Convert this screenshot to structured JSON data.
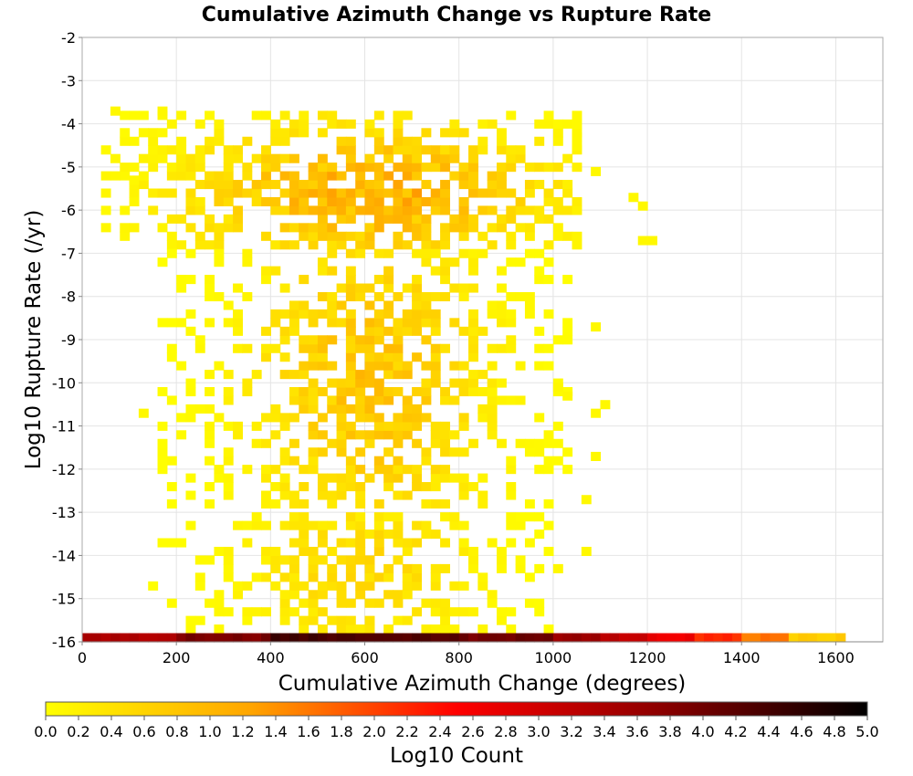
{
  "chart_data": {
    "type": "heatmap",
    "title": "Cumulative Azimuth Change vs Rupture Rate",
    "xlabel": "Cumulative Azimuth Change (degrees)",
    "ylabel": "Log10 Rupture Rate (/yr)",
    "xlim": [
      0,
      1700
    ],
    "ylim": [
      -16,
      -2
    ],
    "x_ticks": [
      0,
      200,
      400,
      600,
      800,
      1000,
      1200,
      1400,
      1600
    ],
    "y_ticks": [
      -2,
      -3,
      -4,
      -5,
      -6,
      -7,
      -8,
      -9,
      -10,
      -11,
      -12,
      -13,
      -14,
      -15,
      -16
    ],
    "bin_width_x": 20,
    "bin_height_y": 0.2,
    "grid": true,
    "colorbar": {
      "label": "Log10 Count",
      "range": [
        0.0,
        5.0
      ],
      "ticks": [
        0.0,
        0.2,
        0.4,
        0.6,
        0.8,
        1.0,
        1.2,
        1.4,
        1.6,
        1.8,
        2.0,
        2.2,
        2.4,
        2.6,
        2.8,
        3.0,
        3.2,
        3.4,
        3.6,
        3.8,
        4.0,
        4.2,
        4.4,
        4.6,
        4.8,
        5.0
      ],
      "colors": [
        "#ffff00",
        "#ffa500",
        "#ff0000",
        "#8b0000",
        "#000000"
      ]
    },
    "bottom_row": {
      "y": -16,
      "x_range": [
        0,
        1620
      ],
      "segments": [
        {
          "x_start": 0,
          "x_end": 200,
          "value": 3.4
        },
        {
          "x_start": 200,
          "x_end": 400,
          "value": 3.9
        },
        {
          "x_start": 400,
          "x_end": 600,
          "value": 4.4
        },
        {
          "x_start": 600,
          "x_end": 800,
          "value": 4.3
        },
        {
          "x_start": 800,
          "x_end": 1000,
          "value": 4.0
        },
        {
          "x_start": 1000,
          "x_end": 1100,
          "value": 3.6
        },
        {
          "x_start": 1100,
          "x_end": 1200,
          "value": 3.2
        },
        {
          "x_start": 1200,
          "x_end": 1300,
          "value": 2.7
        },
        {
          "x_start": 1300,
          "x_end": 1400,
          "value": 2.2
        },
        {
          "x_start": 1400,
          "x_end": 1500,
          "value": 1.6
        },
        {
          "x_start": 1500,
          "x_end": 1620,
          "value": 0.7
        }
      ]
    },
    "density_regions": [
      {
        "name": "upper-band",
        "x_range": [
          40,
          1060
        ],
        "y_range": [
          -6.9,
          -3.8
        ],
        "peak_x": 600,
        "peak_y": -5.7,
        "peak_value": 1.25,
        "spread_x": 260,
        "spread_y": 1.1,
        "fill_fraction": 0.72
      },
      {
        "name": "middle-band",
        "x_range": [
          160,
          1040
        ],
        "y_range": [
          -12.9,
          -7.0
        ],
        "peak_x": 600,
        "peak_y": -10.0,
        "peak_value": 0.95,
        "spread_x": 170,
        "spread_y": 2.6,
        "fill_fraction": 0.6
      },
      {
        "name": "lower-band",
        "x_range": [
          140,
          1000
        ],
        "y_range": [
          -15.8,
          -13.0
        ],
        "peak_x": 580,
        "peak_y": -14.4,
        "peak_value": 0.6,
        "spread_x": 170,
        "spread_y": 1.4,
        "fill_fraction": 0.55
      }
    ],
    "outlier_cells": [
      {
        "x": 1180,
        "y": -6.8,
        "value": 0.1
      },
      {
        "x": 1200,
        "y": -6.8,
        "value": 0.1
      },
      {
        "x": 1180,
        "y": -6.0,
        "value": 0.1
      },
      {
        "x": 1160,
        "y": -5.8,
        "value": 0.1
      },
      {
        "x": 1080,
        "y": -5.2,
        "value": 0.1
      },
      {
        "x": 1040,
        "y": -4.6,
        "value": 0.1
      },
      {
        "x": 1040,
        "y": -4.4,
        "value": 0.1
      },
      {
        "x": 1080,
        "y": -8.8,
        "value": 0.1
      },
      {
        "x": 1100,
        "y": -10.6,
        "value": 0.1
      },
      {
        "x": 1080,
        "y": -10.8,
        "value": 0.1
      },
      {
        "x": 1080,
        "y": -11.8,
        "value": 0.1
      },
      {
        "x": 1060,
        "y": -12.8,
        "value": 0.1
      },
      {
        "x": 1060,
        "y": -14.0,
        "value": 0.1
      },
      {
        "x": 1000,
        "y": -14.4,
        "value": 0.1
      },
      {
        "x": 60,
        "y": -3.8,
        "value": 0.1
      },
      {
        "x": 160,
        "y": -3.8,
        "value": 0.1
      },
      {
        "x": 120,
        "y": -10.8,
        "value": 0.1
      },
      {
        "x": 100,
        "y": -5.4,
        "value": 0.1
      },
      {
        "x": 1000,
        "y": -10.2,
        "value": 0.1
      },
      {
        "x": 1020,
        "y": -10.4,
        "value": 0.1
      }
    ]
  }
}
